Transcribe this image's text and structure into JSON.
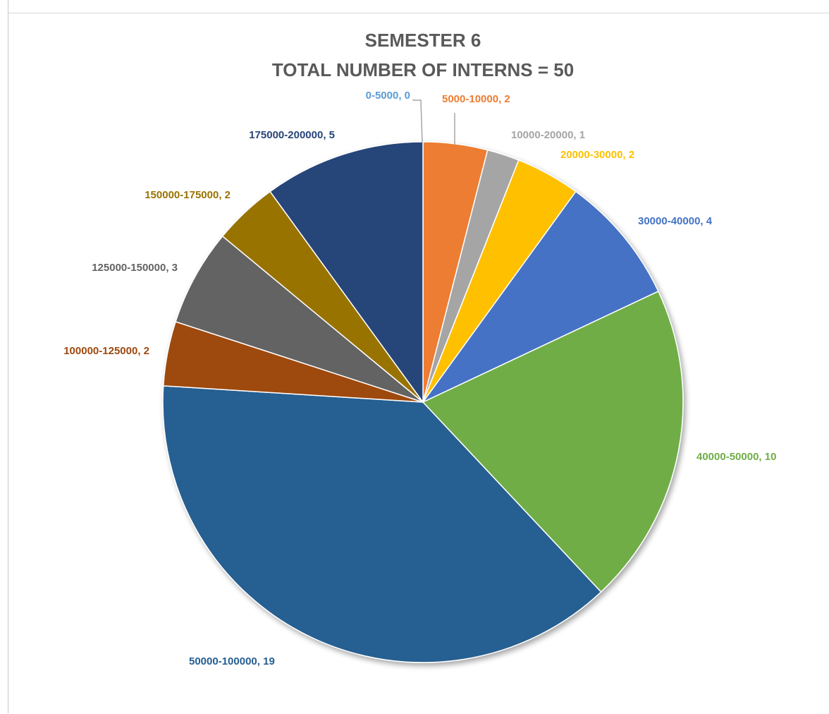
{
  "chart_data": {
    "type": "pie",
    "title": "SEMESTER 6",
    "subtitle": "TOTAL NUMBER OF INTERNS = 50",
    "slices": [
      {
        "label": "0-5000, 0",
        "category": "0-5000",
        "value": 0,
        "color": "#5B9BD5"
      },
      {
        "label": "5000-10000, 2",
        "category": "5000-10000",
        "value": 2,
        "color": "#ED7D31"
      },
      {
        "label": "10000-20000, 1",
        "category": "10000-20000",
        "value": 1,
        "color": "#A5A5A5"
      },
      {
        "label": "20000-30000, 2",
        "category": "20000-30000",
        "value": 2,
        "color": "#FFC000"
      },
      {
        "label": "30000-40000, 4",
        "category": "30000-40000",
        "value": 4,
        "color": "#4472C4"
      },
      {
        "label": "40000-50000, 10",
        "category": "40000-50000",
        "value": 10,
        "color": "#70AD47"
      },
      {
        "label": "50000-100000, 19",
        "category": "50000-100000",
        "value": 19,
        "color": "#255E91"
      },
      {
        "label": "100000-125000, 2",
        "category": "100000-125000",
        "value": 2,
        "color": "#9E480E"
      },
      {
        "label": "125000-150000, 3",
        "category": "125000-150000",
        "value": 3,
        "color": "#636363"
      },
      {
        "label": "150000-175000, 2",
        "category": "150000-175000",
        "value": 2,
        "color": "#997300"
      },
      {
        "label": "175000-200000, 5",
        "category": "175000-200000",
        "value": 5,
        "color": "#264478"
      }
    ],
    "label_colors": [
      "#5B9BD5",
      "#ED7D31",
      "#A5A5A5",
      "#FFC000",
      "#4472C4",
      "#70AD47",
      "#255E91",
      "#9E480E",
      "#636363",
      "#997300",
      "#264478"
    ]
  }
}
